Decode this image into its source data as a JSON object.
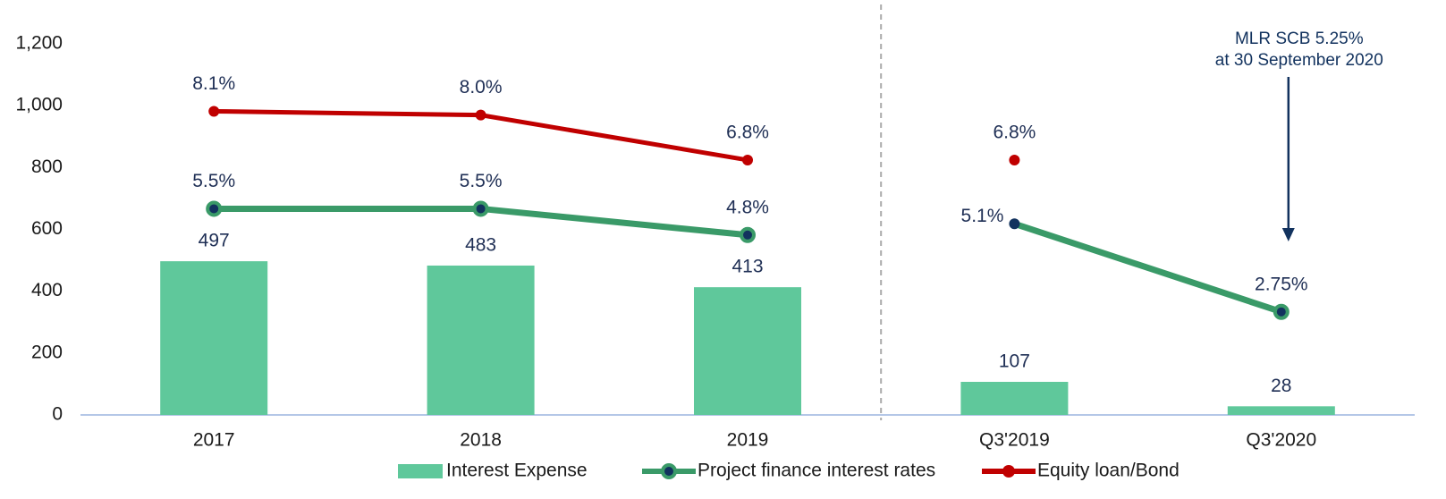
{
  "chart_data": {
    "type": "bar-line",
    "categories": [
      "2017",
      "2018",
      "2019",
      "Q3'2019",
      "Q3'2020"
    ],
    "divider": {
      "after": "2019"
    },
    "ylim": [
      0,
      1200
    ],
    "yticks": [
      0,
      200,
      400,
      600,
      800,
      {
        "value": 1000,
        "label": "1,000"
      },
      {
        "value": 1200,
        "label": "1,200"
      }
    ],
    "y2lim": [
      0,
      9.9
    ],
    "series": [
      {
        "name": "Interest Expense",
        "type": "bar",
        "color": "#5fc89b",
        "values": [
          497,
          483,
          413,
          107,
          28
        ]
      },
      {
        "name": "Project finance interest rates",
        "type": "line",
        "axis": "y2",
        "color": "#3a9a68",
        "marker_color": "#12325e",
        "values": [
          5.5,
          5.5,
          4.8,
          5.1,
          2.75
        ],
        "value_labels": [
          "5.5%",
          "5.5%",
          "4.8%",
          "5.1%",
          "2.75%"
        ]
      },
      {
        "name": "Equity loan/Bond",
        "type": "line",
        "axis": "y2",
        "color": "#c00000",
        "marker_color": "#c00000",
        "values": [
          8.1,
          8.0,
          6.8,
          6.8,
          null
        ],
        "value_labels": [
          "8.1%",
          "8.0%",
          "6.8%",
          "6.8%",
          null
        ]
      }
    ],
    "annotations": [
      {
        "lines": [
          "MLR SCB 5.25%",
          "at 30 September 2020"
        ],
        "at": "Q3'2020"
      }
    ],
    "legend": "bottom"
  }
}
